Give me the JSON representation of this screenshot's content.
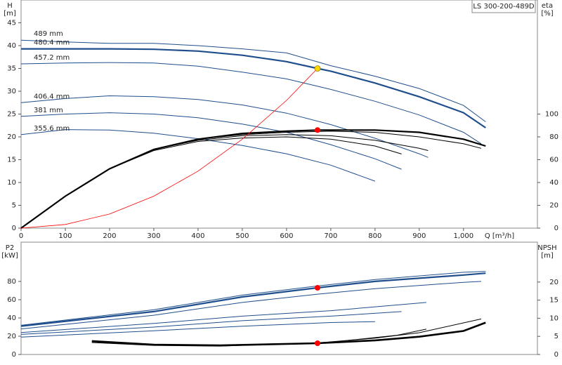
{
  "chart_data": [
    {
      "type": "line",
      "title": "LS 300-200-489D",
      "y_label": [
        "H",
        "[m]"
      ],
      "y2_label": [
        "eta",
        "[%]"
      ],
      "x_label": "Q [m³/h]",
      "xlim": [
        0,
        1167
      ],
      "xticks": [
        0,
        100,
        200,
        300,
        400,
        500,
        600,
        700,
        800,
        900,
        {
          "value": 1000,
          "label": "1,000"
        }
      ],
      "ylim": [
        0,
        50
      ],
      "yticks": [
        0,
        5,
        10,
        15,
        20,
        25,
        30,
        35,
        40,
        45
      ],
      "y2lim": [
        0,
        200
      ],
      "y2ticks": [
        0,
        20,
        40,
        60,
        80,
        100
      ],
      "series": [
        {
          "name": "489 mm",
          "color": "#1f4e8c",
          "x": [
            0,
            100,
            200,
            300,
            400,
            500,
            600,
            700,
            800,
            900,
            1000,
            1050
          ],
          "values": [
            41.2,
            40.8,
            40.5,
            40.5,
            40,
            39.3,
            38.4,
            35.6,
            33.3,
            30.6,
            26.9,
            23.3
          ]
        },
        {
          "name": "480.4 mm",
          "color": "#1f4e8c",
          "width": 2.2,
          "x": [
            0,
            100,
            200,
            300,
            400,
            500,
            600,
            670,
            700,
            800,
            900,
            1000,
            1050
          ],
          "values": [
            39.3,
            39.3,
            39.3,
            39.2,
            38.8,
            37.9,
            36.5,
            35,
            34.4,
            31.8,
            28.8,
            25.3,
            22
          ]
        },
        {
          "name": "457.2 mm",
          "color": "#1f4e8c",
          "x": [
            0,
            100,
            200,
            300,
            400,
            500,
            600,
            700,
            800,
            900,
            1000,
            1040
          ],
          "values": [
            36,
            36.2,
            36.3,
            36.2,
            35.5,
            34.2,
            32.7,
            30.4,
            27.8,
            24.8,
            21,
            18.5
          ]
        },
        {
          "name": "406.4 mm",
          "color": "#1f4e8c",
          "x": [
            0,
            100,
            200,
            300,
            400,
            500,
            600,
            700,
            800,
            900,
            920
          ],
          "values": [
            27.5,
            28.4,
            29,
            28.8,
            28.2,
            27,
            25.2,
            22.7,
            19.7,
            16.3,
            15.5
          ]
        },
        {
          "name": "381 mm",
          "color": "#1f4e8c",
          "x": [
            0,
            100,
            200,
            300,
            400,
            500,
            600,
            700,
            800,
            860
          ],
          "values": [
            24.5,
            25,
            25.3,
            25,
            24.2,
            22.8,
            21,
            18.3,
            15.2,
            12.9
          ]
        },
        {
          "name": "355.6 mm",
          "color": "#1f4e8c",
          "x": [
            0,
            100,
            200,
            300,
            400,
            500,
            600,
            700,
            800
          ],
          "values": [
            20.5,
            21.6,
            21.5,
            20.8,
            19.6,
            18.1,
            16.3,
            13.8,
            10.3
          ]
        },
        {
          "color": "#000000",
          "width": 2.2,
          "axis": "y2",
          "x": [
            0,
            100,
            200,
            300,
            400,
            500,
            600,
            670,
            800,
            900,
            1000,
            1050
          ],
          "values": [
            0,
            28,
            52,
            69,
            78,
            83,
            85,
            86,
            86,
            84,
            78,
            72
          ]
        },
        {
          "color": "#000000",
          "axis": "y2",
          "x": [
            0,
            100,
            200,
            300,
            400,
            500,
            600,
            700,
            800,
            900,
            1000,
            1040
          ],
          "values": [
            0,
            28,
            52,
            69,
            78,
            82,
            84,
            85,
            84,
            80,
            74,
            70
          ]
        },
        {
          "color": "#000000",
          "axis": "y2",
          "x": [
            0,
            100,
            200,
            300,
            400,
            500,
            600,
            700,
            800,
            900,
            920
          ],
          "values": [
            0,
            28,
            52,
            69,
            77,
            81,
            82,
            81,
            77,
            70,
            68
          ]
        },
        {
          "color": "#000000",
          "axis": "y2",
          "x": [
            0,
            100,
            200,
            300,
            400,
            500,
            600,
            700,
            800,
            860
          ],
          "values": [
            0,
            28,
            52,
            68,
            76,
            79,
            80,
            78,
            72,
            65
          ]
        },
        {
          "color": "#ff0000",
          "width": 0.8,
          "x": [
            0,
            100,
            200,
            300,
            400,
            500,
            600,
            670
          ],
          "values": [
            0,
            0.8,
            3.1,
            7,
            12.5,
            19.5,
            28,
            35
          ]
        }
      ],
      "markers": [
        {
          "x": 670,
          "value": 35,
          "color": "#ffd700"
        },
        {
          "x": 670,
          "value": 86,
          "color": "#ff0000",
          "axis": "y2"
        }
      ]
    },
    {
      "type": "line",
      "y_label": [
        "P2",
        "[kW]"
      ],
      "y2_label": [
        "NPSH",
        "[m]"
      ],
      "xlim": [
        0,
        1167
      ],
      "ylim": [
        0,
        123
      ],
      "yticks": [
        0,
        20,
        40,
        60,
        80
      ],
      "y2lim": [
        0,
        31
      ],
      "y2ticks": [
        0,
        5,
        10,
        15,
        20
      ],
      "series": [
        {
          "color": "#1f4e8c",
          "x": [
            0,
            300,
            500,
            670,
            800,
            1000,
            1050
          ],
          "values": [
            32,
            49,
            65,
            75,
            82,
            90,
            91
          ]
        },
        {
          "color": "#1f4e8c",
          "width": 2.2,
          "x": [
            0,
            300,
            500,
            670,
            800,
            1000,
            1050
          ],
          "values": [
            31,
            47,
            63,
            73,
            80,
            87,
            89
          ]
        },
        {
          "color": "#1f4e8c",
          "x": [
            0,
            300,
            500,
            670,
            800,
            1000,
            1040
          ],
          "values": [
            28,
            43,
            57,
            66,
            72,
            79,
            80
          ]
        },
        {
          "color": "#1f4e8c",
          "x": [
            0,
            300,
            500,
            700,
            916
          ],
          "values": [
            24,
            34,
            42,
            48,
            57
          ]
        },
        {
          "color": "#1f4e8c",
          "x": [
            0,
            300,
            500,
            700,
            860
          ],
          "values": [
            22,
            30,
            37,
            42,
            47
          ]
        },
        {
          "color": "#1f4e8c",
          "x": [
            0,
            300,
            500,
            700,
            800
          ],
          "values": [
            19,
            26,
            31,
            35,
            36
          ]
        },
        {
          "color": "#000000",
          "width": 2.6,
          "axis": "y2",
          "x": [
            160,
            300,
            450,
            670,
            800,
            900,
            1000,
            1050
          ],
          "values": [
            3.7,
            2.7,
            2.5,
            3.1,
            3.9,
            4.9,
            6.5,
            8.8
          ]
        },
        {
          "color": "#000000",
          "axis": "y2",
          "x": [
            160,
            300,
            450,
            670,
            800,
            900,
            1040
          ],
          "values": [
            3.5,
            2.6,
            2.4,
            3.2,
            4.5,
            6,
            9.8
          ]
        },
        {
          "color": "#000000",
          "axis": "y2",
          "x": [
            160,
            300,
            450,
            700,
            850,
            916
          ],
          "values": [
            3.3,
            2.5,
            2.3,
            3.4,
            5.3,
            7
          ]
        }
      ],
      "markers": [
        {
          "x": 670,
          "value": 73,
          "color": "#ff0000"
        },
        {
          "x": 670,
          "value": 3.1,
          "color": "#ff0000",
          "axis": "y2"
        }
      ]
    }
  ]
}
